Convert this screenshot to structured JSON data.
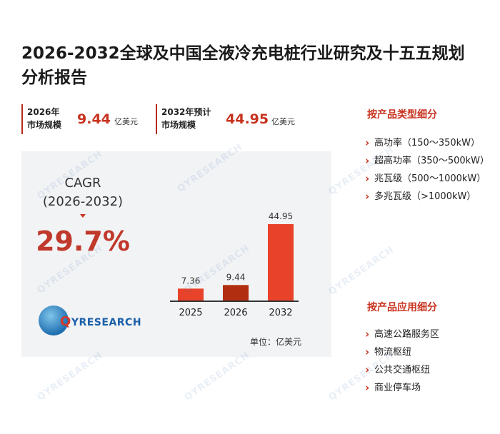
{
  "title": "2026-2032全球及中国全液冷充电桩行业研究及十五五规划分析报告",
  "stats": [
    {
      "label_line1": "2026年",
      "label_line2": "市场规模",
      "value": "9.44",
      "unit": "亿美元"
    },
    {
      "label_line1": "2032年预计",
      "label_line2": "市场规模",
      "value": "44.95",
      "unit": "亿美元"
    }
  ],
  "cagr": {
    "label_line1": "CAGR",
    "label_line2": "(2026-2032)",
    "value": "29.7%"
  },
  "logo": {
    "text_q": "Q",
    "text_rest": "YRESEARCH",
    "watermark": "QYRESEARCH"
  },
  "unit_note": "单位：亿美元",
  "colors": {
    "accent": "#c8321f",
    "bar_light": "#e8432a",
    "bar_dark": "#b22e10",
    "panel": "#f2f3f5"
  },
  "chart_data": {
    "type": "bar",
    "categories": [
      "2025",
      "2026",
      "2032"
    ],
    "values": [
      7.36,
      9.44,
      44.95
    ],
    "value_labels": [
      "7.36",
      "9.44",
      "44.95"
    ],
    "title": "",
    "xlabel": "",
    "ylabel": "",
    "ylim": [
      0,
      50
    ],
    "grid": false,
    "unit": "亿美元"
  },
  "sidebar": {
    "type_heading": "按产品类型细分",
    "type_items": [
      "高功率（150～350kW）",
      "超高功率（350～500kW）",
      "兆瓦级（500～1000kW）",
      "多兆瓦级（>1000kW）"
    ],
    "app_heading": "按产品应用细分",
    "app_items": [
      "高速公路服务区",
      "物流枢纽",
      "公共交通枢纽",
      "商业停车场"
    ]
  }
}
